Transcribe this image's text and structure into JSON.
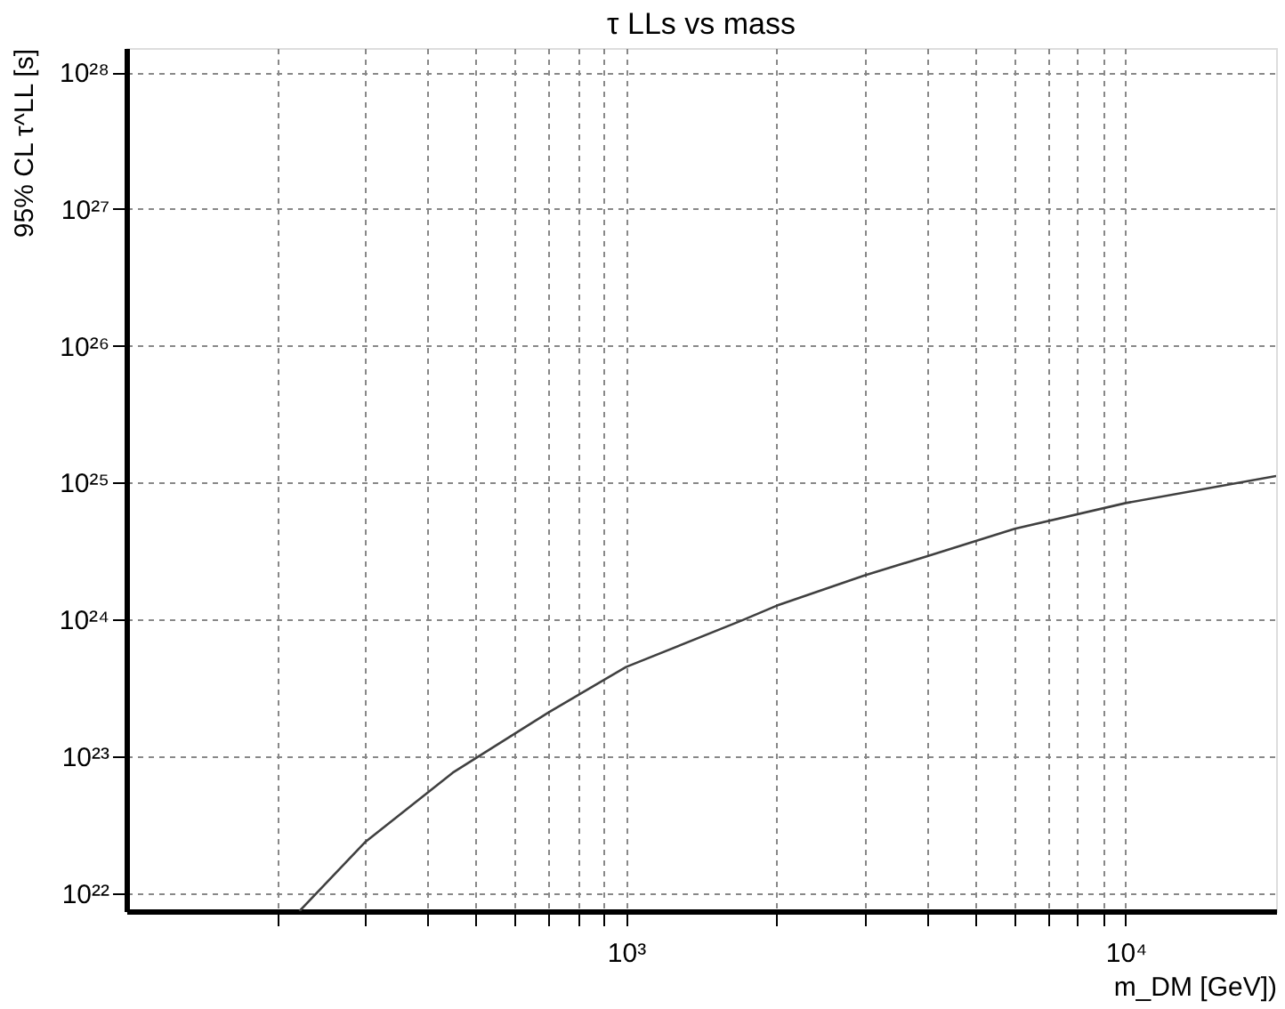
{
  "chart_data": {
    "type": "line",
    "title": "τ LLs vs mass",
    "xlabel": "m_DM [GeV])",
    "ylabel": "95% CL τ^LL [s]",
    "log": "xy",
    "grid": true,
    "marker": "none",
    "line_style": "solid",
    "x": [
      222,
      300,
      450,
      700,
      1000,
      1700,
      2000,
      3000,
      4000,
      6000,
      10000,
      20000
    ],
    "series": [
      {
        "color": "#404040",
        "values": [
          7.4e+21,
          2.35e+22,
          7.6e+22,
          2.1e+23,
          4.5e+23,
          9.8e+23,
          1.26e+24,
          2.1e+24,
          2.9e+24,
          4.6e+24,
          7.1e+24,
          1.12e+25
        ]
      }
    ],
    "xlim": [
      100,
      20000
    ],
    "ylim": [
      7.4e+21,
      1.5e+28
    ],
    "xticks": [
      {
        "value": 200,
        "label": null
      },
      {
        "value": 300,
        "label": null
      },
      {
        "value": 400,
        "label": null
      },
      {
        "value": 500,
        "label": null
      },
      {
        "value": 600,
        "label": null
      },
      {
        "value": 700,
        "label": null
      },
      {
        "value": 800,
        "label": null
      },
      {
        "value": 900,
        "label": null
      },
      {
        "value": 1000,
        "label": "10³"
      },
      {
        "value": 2000,
        "label": null
      },
      {
        "value": 3000,
        "label": null
      },
      {
        "value": 4000,
        "label": null
      },
      {
        "value": 5000,
        "label": null
      },
      {
        "value": 6000,
        "label": null
      },
      {
        "value": 7000,
        "label": null
      },
      {
        "value": 8000,
        "label": null
      },
      {
        "value": 9000,
        "label": null
      },
      {
        "value": 10000,
        "label": "10⁴"
      }
    ],
    "yticks": [
      {
        "value": 1e+22,
        "label": "10²²"
      },
      {
        "value": 1e+23,
        "label": "10²³"
      },
      {
        "value": 1e+24,
        "label": "10²⁴"
      },
      {
        "value": 1e+25,
        "label": "10²⁵"
      },
      {
        "value": 1e+26,
        "label": "10²⁶"
      },
      {
        "value": 1e+27,
        "label": "10²⁷"
      },
      {
        "value": 1e+28,
        "label": "10²⁸"
      }
    ]
  }
}
